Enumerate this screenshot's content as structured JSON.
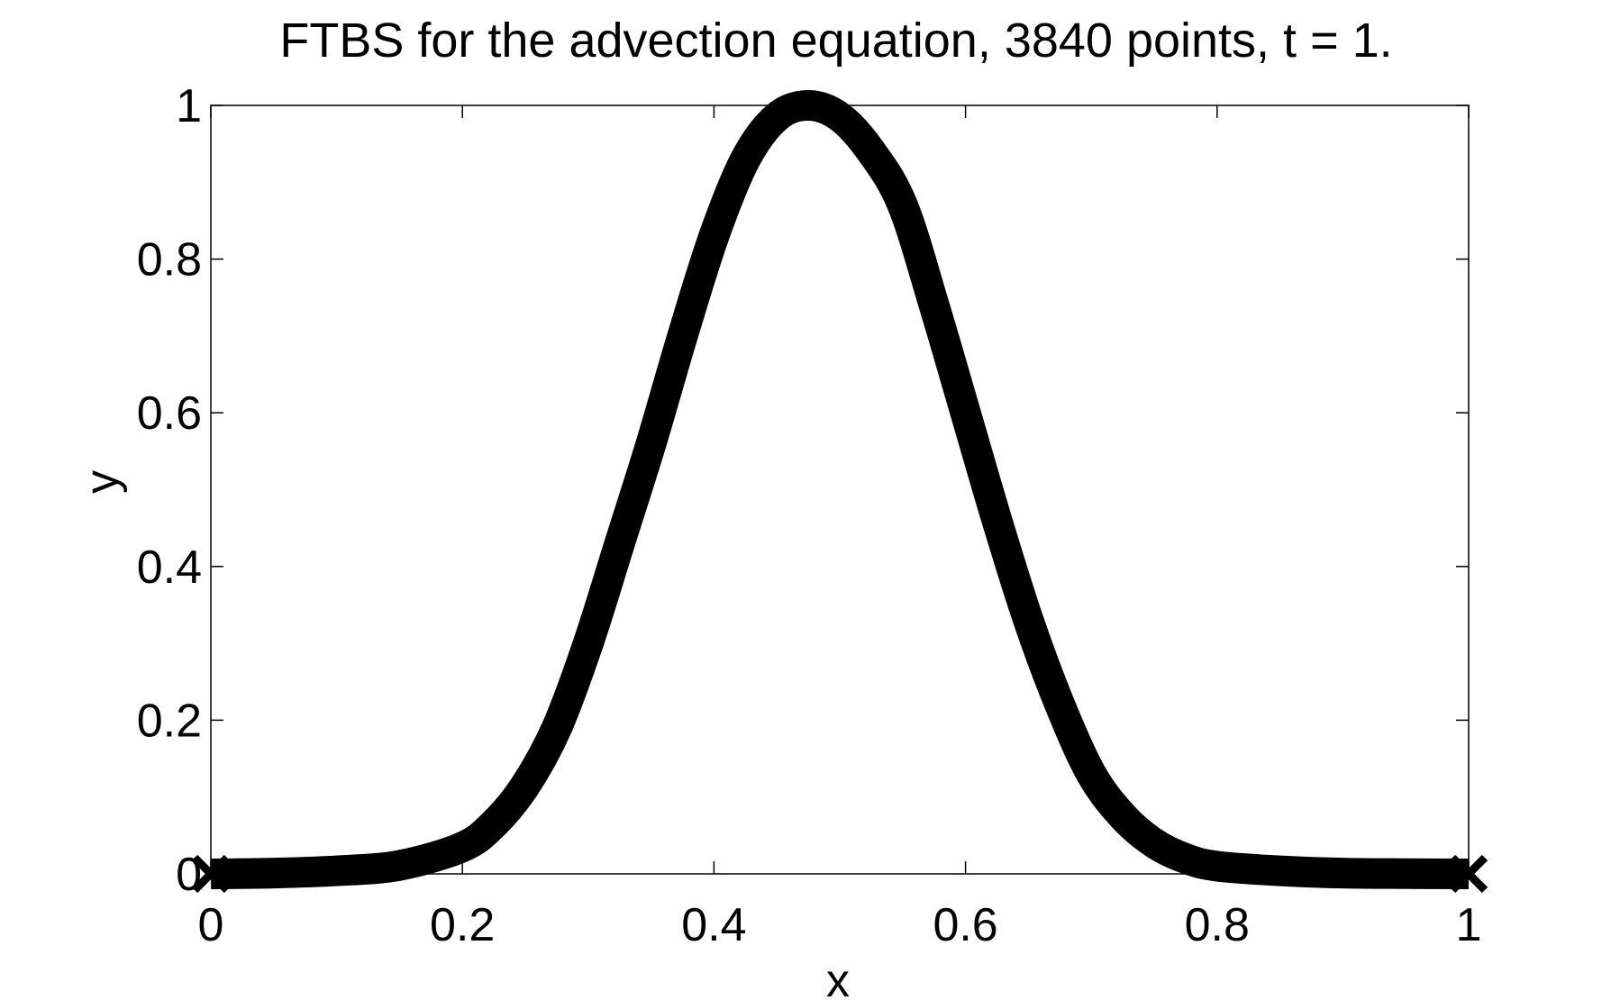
{
  "chart_data": {
    "type": "line",
    "title": "FTBS for the advection equation, 3840 points, t = 1.",
    "xlabel": "x",
    "ylabel": "y",
    "xlim": [
      0,
      1
    ],
    "ylim": [
      0,
      1
    ],
    "xticks": [
      0,
      0.2,
      0.4,
      0.6,
      0.8,
      1
    ],
    "xtick_labels": [
      "0",
      "0.2",
      "0.4",
      "0.6",
      "0.8",
      "1"
    ],
    "yticks": [
      0,
      0.2,
      0.4,
      0.6,
      0.8,
      1
    ],
    "ytick_labels": [
      "0",
      "0.2",
      "0.4",
      "0.6",
      "0.8",
      "1"
    ],
    "grid": false,
    "line_color": "#000000",
    "marker": "x",
    "series": [
      {
        "x": [
          0,
          0.05,
          0.1,
          0.15,
          0.2,
          0.225,
          0.25,
          0.275,
          0.3,
          0.325,
          0.35,
          0.375,
          0.4,
          0.425,
          0.45,
          0.475,
          0.5,
          0.525,
          0.55,
          0.575,
          0.6,
          0.625,
          0.65,
          0.675,
          0.7,
          0.725,
          0.75,
          0.775,
          0.8,
          0.85,
          0.9,
          0.95,
          1
        ],
        "y": [
          0,
          0.001,
          0.004,
          0.011,
          0.035,
          0.065,
          0.115,
          0.19,
          0.3,
          0.43,
          0.56,
          0.7,
          0.83,
          0.93,
          0.985,
          1.0,
          0.985,
          0.94,
          0.87,
          0.74,
          0.6,
          0.46,
          0.33,
          0.22,
          0.13,
          0.075,
          0.04,
          0.02,
          0.01,
          0.004,
          0.001,
          0.0003,
          0
        ]
      }
    ]
  }
}
